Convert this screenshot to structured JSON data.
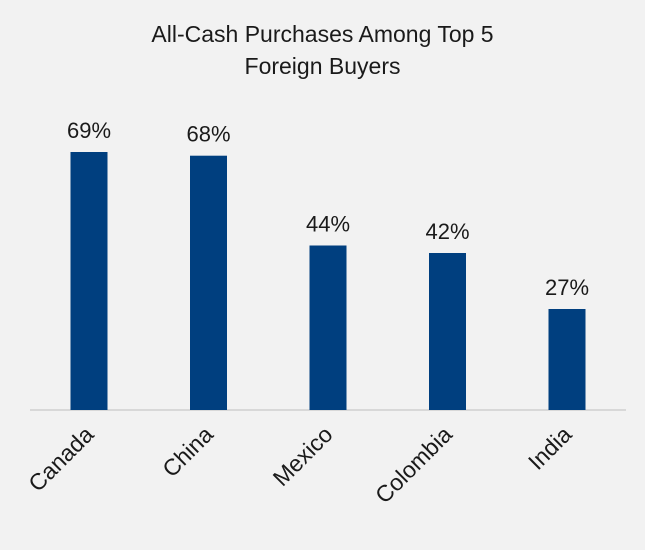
{
  "chart_data": {
    "type": "bar",
    "title_lines": [
      "All-Cash Purchases Among Top 5",
      "Foreign Buyers"
    ],
    "categories": [
      "Canada",
      "China",
      "Mexico",
      "Colombia",
      "India"
    ],
    "values": [
      69,
      68,
      44,
      42,
      27
    ],
    "value_labels": [
      "69%",
      "68%",
      "44%",
      "42%",
      "27%"
    ],
    "xlabel": "",
    "ylabel": "",
    "ylim": [
      0,
      69
    ],
    "grid": false,
    "legend": "none",
    "colors": {
      "bar": "#003f7f",
      "background": "#f2f2f2",
      "axis": "#d0d0d0",
      "text": "#1a1a1a"
    }
  }
}
